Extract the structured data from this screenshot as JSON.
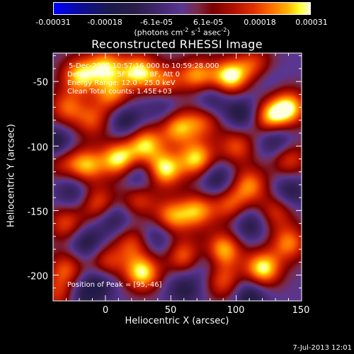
{
  "chart_data": {
    "type": "heatmap",
    "title": "Reconstructed RHESSI Image",
    "xlabel": "Heliocentric X (arcsec)",
    "ylabel": "Heliocentric Y (arcsec)",
    "xlim": [
      -40,
      150
    ],
    "ylim": [
      -220,
      -28
    ],
    "x_ticks": [
      "0",
      "50",
      "100",
      "150"
    ],
    "y_ticks": [
      "-50",
      "-100",
      "-150",
      "-200"
    ],
    "colorbar": {
      "range": [
        -0.00031,
        0.00031
      ],
      "ticks": [
        "-0.00031",
        "-0.00018",
        "-6.1e-05",
        "6.1e-05",
        "0.00018",
        "0.00031"
      ],
      "unit_main": "(photons cm",
      "unit_exp1": "-2",
      "unit_mid1": " s",
      "unit_exp2": "-1",
      "unit_mid2": " asec",
      "unit_exp3": "-2",
      "unit_end": ")"
    },
    "annotations": {
      "time": "5-Dec-2005 10:57:16.000 to 10:59:28.000",
      "detectors": "Detectors: 4F 5F 6F 7F 8F, Att 0",
      "energy": "Energy Range: 12.0 - 25.0 keV",
      "clean": "Clean     Total counts: 1.45E+03",
      "peak": "Position of Peak = [95,-46]"
    },
    "blobs": [
      {
        "x": -20,
        "y": -45,
        "v": 0.85
      },
      {
        "x": 0,
        "y": -38,
        "v": 0.8
      },
      {
        "x": 25,
        "y": -42,
        "v": 0.9
      },
      {
        "x": 5,
        "y": -60,
        "v": 0.7
      },
      {
        "x": 45,
        "y": -50,
        "v": 0.6
      },
      {
        "x": 70,
        "y": -45,
        "v": 0.75
      },
      {
        "x": 95,
        "y": -46,
        "v": 1.0
      },
      {
        "x": 115,
        "y": -38,
        "v": 0.7
      },
      {
        "x": 140,
        "y": -70,
        "v": 0.9
      },
      {
        "x": 125,
        "y": -78,
        "v": 0.85
      },
      {
        "x": 55,
        "y": -85,
        "v": 0.8
      },
      {
        "x": 75,
        "y": -80,
        "v": 0.6
      },
      {
        "x": -10,
        "y": -80,
        "v": 0.55
      },
      {
        "x": -30,
        "y": -70,
        "v": 0.6
      },
      {
        "x": 30,
        "y": -98,
        "v": 0.85
      },
      {
        "x": 10,
        "y": -110,
        "v": 0.95
      },
      {
        "x": -15,
        "y": -115,
        "v": 0.8
      },
      {
        "x": -35,
        "y": -110,
        "v": 0.6
      },
      {
        "x": 45,
        "y": -118,
        "v": 0.95
      },
      {
        "x": 70,
        "y": -110,
        "v": 0.9
      },
      {
        "x": 100,
        "y": -100,
        "v": 0.6
      },
      {
        "x": 110,
        "y": -130,
        "v": 0.7
      },
      {
        "x": 140,
        "y": -110,
        "v": 0.6
      },
      {
        "x": -5,
        "y": -145,
        "v": 0.7
      },
      {
        "x": 25,
        "y": -140,
        "v": 0.6
      },
      {
        "x": 50,
        "y": -155,
        "v": 0.75
      },
      {
        "x": 70,
        "y": -150,
        "v": 0.75
      },
      {
        "x": 95,
        "y": -145,
        "v": 0.6
      },
      {
        "x": 130,
        "y": -150,
        "v": 0.55
      },
      {
        "x": -30,
        "y": -160,
        "v": 0.6
      },
      {
        "x": 20,
        "y": -175,
        "v": 0.55
      },
      {
        "x": 0,
        "y": -190,
        "v": 0.6
      },
      {
        "x": -30,
        "y": -195,
        "v": 0.6
      },
      {
        "x": 28,
        "y": -198,
        "v": 0.95
      },
      {
        "x": 60,
        "y": -185,
        "v": 0.7
      },
      {
        "x": 90,
        "y": -180,
        "v": 0.85
      },
      {
        "x": 90,
        "y": -205,
        "v": 0.6
      },
      {
        "x": 120,
        "y": -195,
        "v": 1.0
      },
      {
        "x": 140,
        "y": -175,
        "v": 0.7
      },
      {
        "x": -35,
        "y": -215,
        "v": 0.55
      },
      {
        "x": 15,
        "y": -80,
        "v": -0.5
      },
      {
        "x": 80,
        "y": -65,
        "v": -0.45
      },
      {
        "x": 105,
        "y": -75,
        "v": -0.5
      },
      {
        "x": 130,
        "y": -95,
        "v": -0.55
      },
      {
        "x": -38,
        "y": -100,
        "v": -0.7
      },
      {
        "x": 25,
        "y": -125,
        "v": -0.5
      },
      {
        "x": 5,
        "y": -155,
        "v": -0.5
      },
      {
        "x": 85,
        "y": -125,
        "v": -0.5
      },
      {
        "x": -15,
        "y": -175,
        "v": -0.5
      },
      {
        "x": 40,
        "y": -170,
        "v": -0.4
      },
      {
        "x": 110,
        "y": -160,
        "v": -0.45
      },
      {
        "x": -25,
        "y": -135,
        "v": -0.4
      },
      {
        "x": 110,
        "y": -215,
        "v": -0.5
      },
      {
        "x": 60,
        "y": -210,
        "v": -0.4
      },
      {
        "x": -5,
        "y": -205,
        "v": -0.45
      },
      {
        "x": 45,
        "y": -70,
        "v": -0.35
      },
      {
        "x": 140,
        "y": -135,
        "v": -0.45
      },
      {
        "x": -20,
        "y": -215,
        "v": -0.4
      },
      {
        "x": 75,
        "y": -190,
        "v": -0.3
      },
      {
        "x": 120,
        "y": -45,
        "v": -0.35
      }
    ]
  },
  "footer": {
    "date": "7-Jul-2013 12:01"
  }
}
